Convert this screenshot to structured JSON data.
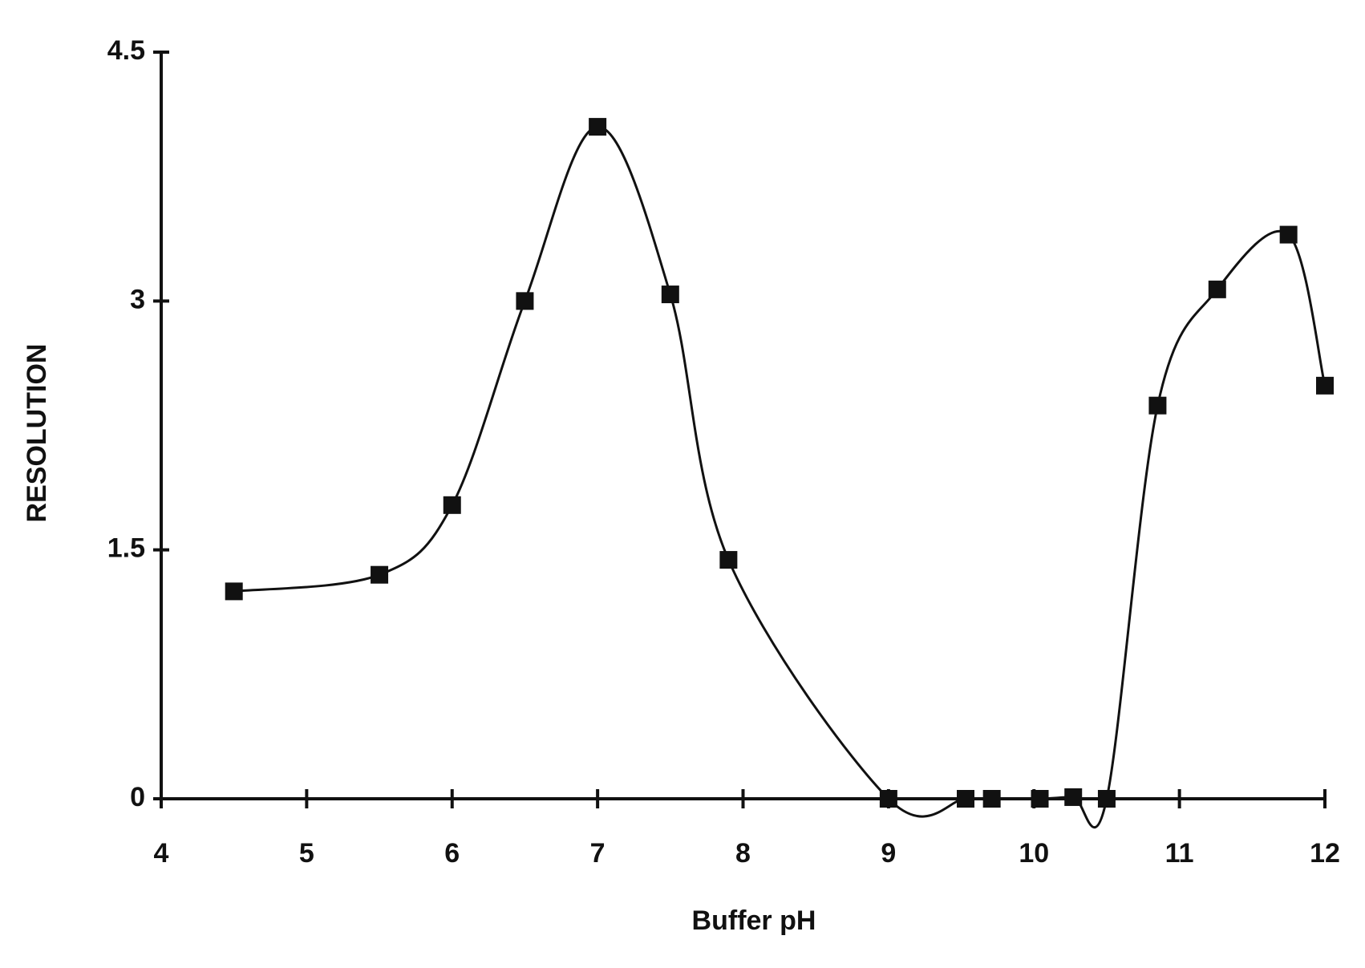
{
  "chart_data": {
    "type": "line",
    "x_label": "Buffer pH",
    "y_label": "RESOLUTION",
    "x": [
      4.5,
      5.5,
      6,
      6.5,
      7,
      7.5,
      7.9,
      9,
      9.53,
      9.71,
      10.04,
      10.27,
      10.5,
      10.85,
      11.26,
      11.75,
      12
    ],
    "series": [
      {
        "color": "#111111",
        "values": [
          1.25,
          1.35,
          1.77,
          3.0,
          4.05,
          3.04,
          1.44,
          0,
          0,
          0,
          0,
          0.01,
          0,
          2.37,
          3.07,
          3.4,
          2.49
        ]
      }
    ],
    "xlim": [
      4,
      12
    ],
    "xticks": [
      4,
      5,
      6,
      7,
      8,
      9,
      10,
      11,
      12
    ],
    "ylim": [
      0,
      4.5
    ],
    "yticks": [
      0,
      1.5,
      3,
      4.5
    ],
    "smooth": true,
    "marker": "square"
  }
}
